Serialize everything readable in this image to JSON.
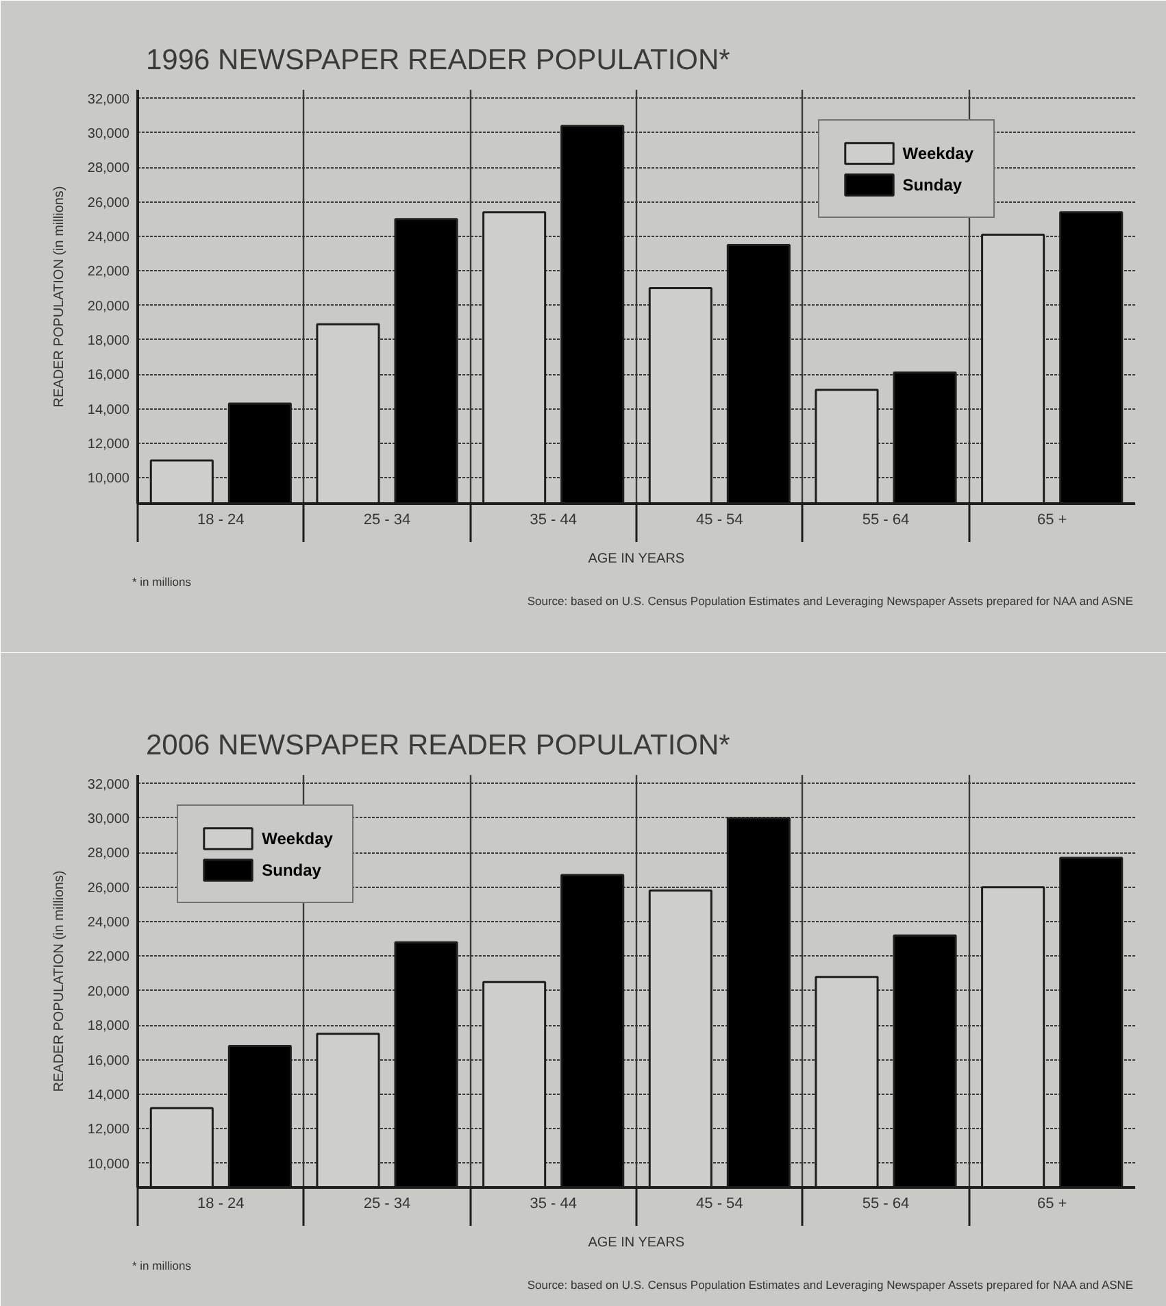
{
  "chart_data": [
    {
      "type": "bar",
      "title": "1996 NEWSPAPER READER POPULATION*",
      "xlabel": "AGE IN YEARS",
      "ylabel": "READER POPULATION (in millions)",
      "categories": [
        "18 - 24",
        "25 - 34",
        "35 - 44",
        "45 - 54",
        "55 - 64",
        "65 +"
      ],
      "series": [
        {
          "name": "Weekday",
          "color": "#cfcfcb",
          "values": [
            11000,
            18900,
            25400,
            21000,
            15100,
            24100
          ]
        },
        {
          "name": "Sunday",
          "color": "#000000",
          "values": [
            14300,
            25000,
            30400,
            23500,
            16100,
            25400
          ]
        }
      ],
      "ylim": [
        8500,
        32500
      ],
      "yticks": [
        {
          "value": 10000,
          "label": "10,000"
        },
        {
          "value": 12000,
          "label": "12,000"
        },
        {
          "value": 14000,
          "label": "14,000"
        },
        {
          "value": 16000,
          "label": "16,000"
        },
        {
          "value": 18000,
          "label": "18,000"
        },
        {
          "value": 20000,
          "label": "20,000"
        },
        {
          "value": 22000,
          "label": "22,000"
        },
        {
          "value": 24000,
          "label": "24,000"
        },
        {
          "value": 26000,
          "label": "26,000"
        },
        {
          "value": 28000,
          "label": "28,000"
        },
        {
          "value": 30000,
          "label": "30,000"
        },
        {
          "value": 32000,
          "label": "32,000"
        }
      ],
      "grid": true,
      "legend": "top right",
      "annotations": [
        "* in millions",
        "Source: based on U.S. Census Population Estimates and Leveraging Newspaper Assets prepared for NAA and ASNE"
      ]
    },
    {
      "type": "bar",
      "title": "2006 NEWSPAPER READER POPULATION*",
      "xlabel": "AGE IN YEARS",
      "ylabel": "READER POPULATION (in millions)",
      "categories": [
        "18 - 24",
        "25 - 34",
        "35 - 44",
        "45 - 54",
        "55 - 64",
        "65 +"
      ],
      "series": [
        {
          "name": "Weekday",
          "color": "#cfcfcb",
          "values": [
            13200,
            17500,
            20500,
            25800,
            20800,
            26000
          ]
        },
        {
          "name": "Sunday",
          "color": "#000000",
          "values": [
            16800,
            22800,
            26700,
            30000,
            23200,
            27700
          ]
        }
      ],
      "ylim": [
        8600,
        32500
      ],
      "yticks": [
        {
          "value": 10000,
          "label": "10,000"
        },
        {
          "value": 12000,
          "label": "12,000"
        },
        {
          "value": 14000,
          "label": "14,000"
        },
        {
          "value": 16000,
          "label": "16,000"
        },
        {
          "value": 18000,
          "label": "18,000"
        },
        {
          "value": 20000,
          "label": "20,000"
        },
        {
          "value": 22000,
          "label": "22,000"
        },
        {
          "value": 24000,
          "label": "24,000"
        },
        {
          "value": 26000,
          "label": "26,000"
        },
        {
          "value": 28000,
          "label": "28,000"
        },
        {
          "value": 30000,
          "label": "30,000"
        },
        {
          "value": 32000,
          "label": "32,000"
        }
      ],
      "grid": true,
      "legend": "top left",
      "annotations": [
        "* in millions",
        "Source: based on U.S. Census Population Estimates and Leveraging Newspaper Assets prepared for NAA and ASNE"
      ]
    }
  ]
}
